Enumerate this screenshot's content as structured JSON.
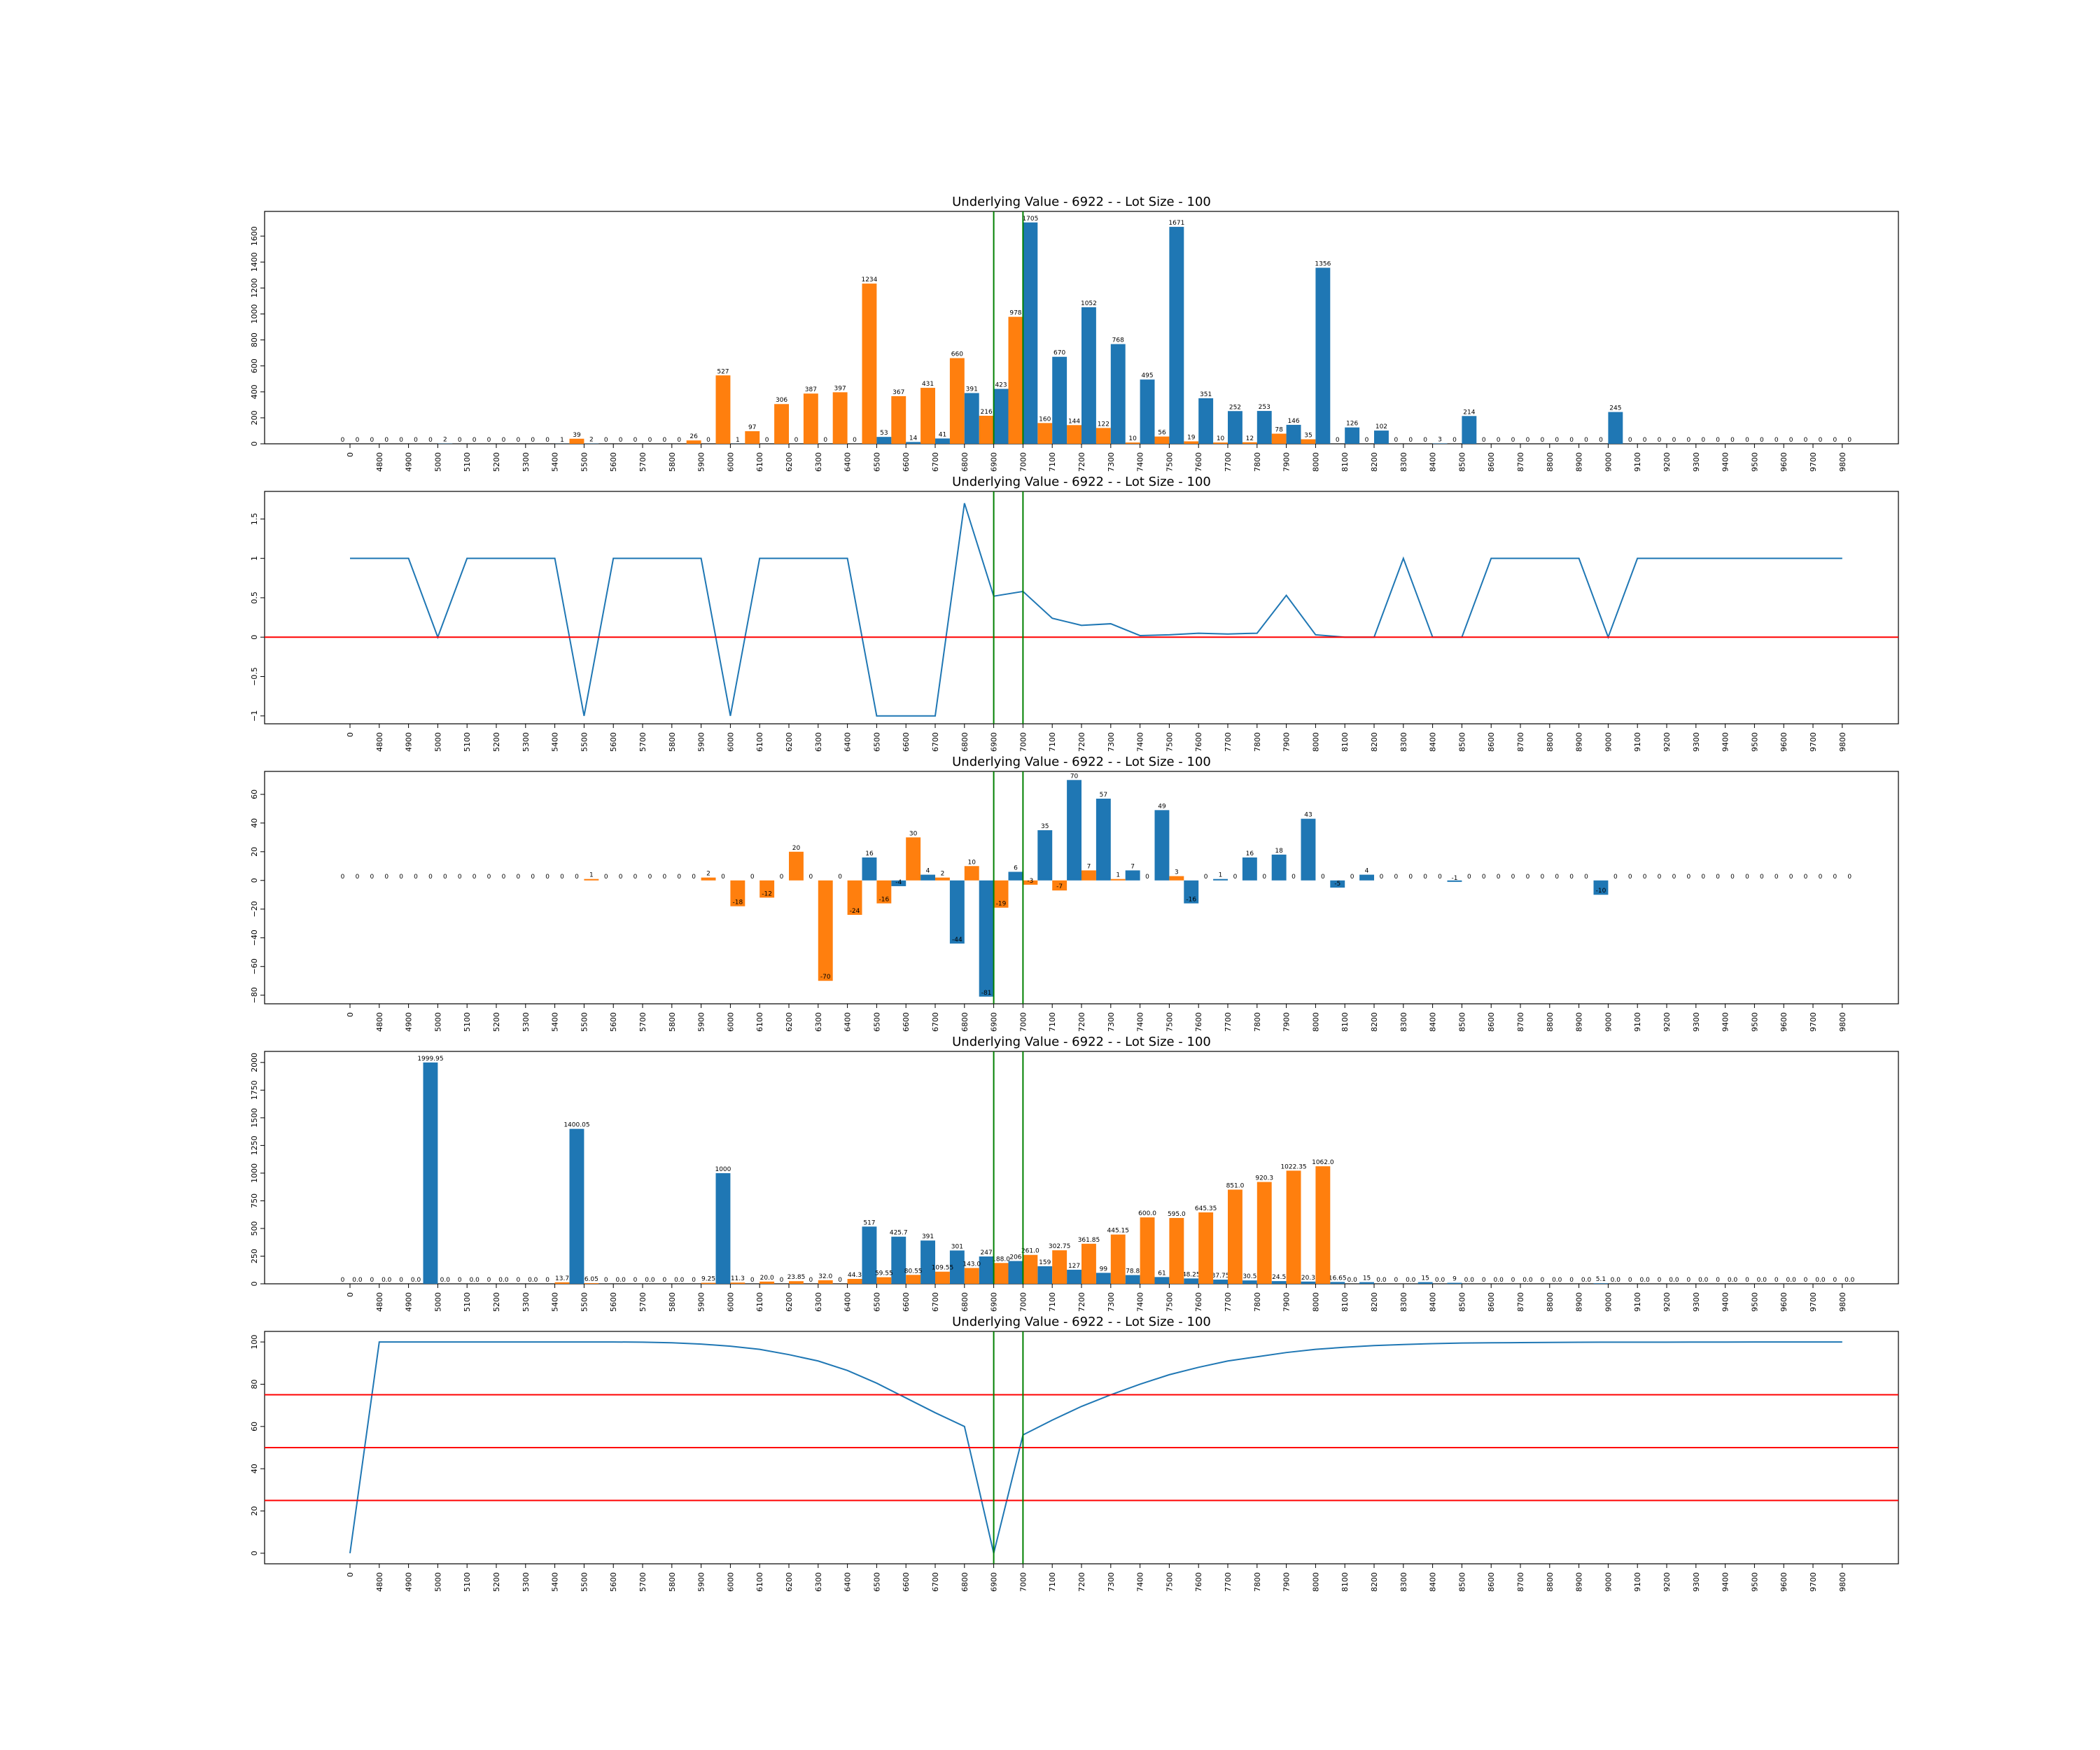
{
  "colors": {
    "blue": "#1f77b4",
    "orange": "#ff7f0e",
    "green": "#008000",
    "red": "#ff0000"
  },
  "x_tick_labels": [
    "0",
    "4800",
    "4900",
    "5000",
    "5100",
    "5200",
    "5300",
    "5400",
    "5500",
    "5600",
    "5700",
    "5800",
    "5900",
    "6000",
    "6100",
    "6200",
    "6300",
    "6400",
    "6500",
    "6600",
    "6700",
    "6800",
    "6900",
    "7000",
    "7100",
    "7200",
    "7300",
    "7400",
    "7500",
    "7600",
    "7700",
    "7800",
    "7900",
    "8000",
    "8100",
    "8200",
    "8300",
    "8400",
    "8500",
    "8600",
    "8700",
    "8800",
    "8900",
    "9000",
    "9100",
    "9200",
    "9300",
    "9400",
    "9500",
    "9600",
    "9700",
    "9800"
  ],
  "chart_data": [
    {
      "type": "bar",
      "title": "Underlying Value - 6922 - - Lot Size - 100",
      "xlabel": "",
      "ylabel": "",
      "ylim": [
        0,
        1790
      ],
      "yticks": [
        0,
        200,
        400,
        600,
        800,
        1000,
        1200,
        1400,
        1600
      ],
      "vlines": [
        "6900",
        "7000"
      ],
      "hlines": [],
      "series": [
        {
          "color": "orange",
          "values": [
            0,
            0,
            0,
            0,
            0,
            0,
            0,
            0,
            39,
            0,
            0,
            0,
            26,
            527,
            97,
            306,
            387,
            397,
            1234,
            367,
            431,
            660,
            216,
            978,
            160,
            144,
            122,
            10,
            56,
            19,
            10,
            12,
            78,
            35,
            0,
            0,
            0,
            0,
            0,
            0,
            0,
            0,
            0,
            0,
            0,
            0,
            0,
            0,
            0,
            0,
            0,
            0
          ]
        },
        {
          "color": "blue",
          "values": [
            0,
            0,
            0,
            2,
            0,
            0,
            0,
            1,
            2,
            0,
            0,
            0,
            0,
            1,
            0,
            0,
            0,
            0,
            53,
            14,
            41,
            391,
            423,
            1705,
            670,
            1052,
            768,
            495,
            1671,
            351,
            252,
            253,
            146,
            1356,
            126,
            102,
            0,
            3,
            214,
            0,
            0,
            0,
            0,
            245,
            0,
            0,
            0,
            0,
            0,
            0,
            0,
            0
          ]
        }
      ]
    },
    {
      "type": "line",
      "title": "Underlying Value - 6922 - - Lot Size - 100",
      "xlabel": "",
      "ylabel": "",
      "ylim": [
        -1.1,
        1.85
      ],
      "yticks": [
        -1.0,
        -0.5,
        0.0,
        0.5,
        1.0,
        1.5
      ],
      "vlines": [
        "6900",
        "7000"
      ],
      "hlines": [
        0
      ],
      "series": [
        {
          "color": "blue",
          "values": [
            1,
            1,
            1,
            0,
            1,
            1,
            1,
            1,
            -1,
            1,
            1,
            1,
            1,
            -1,
            1,
            1,
            1,
            1,
            -1,
            -1,
            -1,
            1.7,
            0.52,
            0.58,
            0.24,
            0.15,
            0.17,
            0.02,
            0.03,
            0.05,
            0.04,
            0.05,
            0.53,
            0.03,
            0,
            0,
            1,
            0,
            0,
            1,
            1,
            1,
            1,
            0,
            1,
            1,
            1,
            1,
            1,
            1,
            1,
            1
          ]
        }
      ]
    },
    {
      "type": "bar",
      "title": "Underlying Value - 6922 - - Lot Size - 100",
      "xlabel": "",
      "ylabel": "",
      "ylim": [
        -86,
        76
      ],
      "yticks": [
        -80,
        -60,
        -40,
        -20,
        0,
        20,
        40,
        60
      ],
      "vlines": [
        "6900",
        "7000"
      ],
      "hlines": [],
      "series": [
        {
          "color": "blue",
          "values": [
            0,
            0,
            0,
            0,
            0,
            0,
            0,
            0,
            0,
            0,
            0,
            0,
            0,
            0,
            0,
            0,
            0,
            0,
            16,
            -4,
            4,
            -44,
            -81,
            6,
            35,
            70,
            57,
            7,
            49,
            -16,
            1,
            16,
            18,
            43,
            -5,
            4,
            0,
            0,
            -1,
            0,
            0,
            0,
            0,
            -10,
            0,
            0,
            0,
            0,
            0,
            0,
            0,
            0
          ]
        },
        {
          "color": "orange",
          "values": [
            0,
            0,
            0,
            0,
            0,
            0,
            0,
            0,
            1,
            0,
            0,
            0,
            2,
            -18,
            -12,
            20,
            -70,
            -24,
            -16,
            30,
            2,
            10,
            -19,
            -3,
            -7,
            7,
            1,
            0,
            3,
            0,
            0,
            0,
            0,
            0,
            0,
            0,
            0,
            0,
            0,
            0,
            0,
            0,
            0,
            0,
            0,
            0,
            0,
            0,
            0,
            0,
            0,
            0
          ]
        }
      ]
    },
    {
      "type": "bar",
      "title": "Underlying Value - 6922 - - Lot Size - 100",
      "xlabel": "",
      "ylabel": "",
      "ylim": [
        0,
        2100
      ],
      "yticks": [
        0,
        250,
        500,
        750,
        1000,
        1250,
        1500,
        1750,
        2000
      ],
      "vlines": [
        "6900",
        "7000"
      ],
      "hlines": [],
      "series": [
        {
          "color": "blue",
          "values": [
            0.0,
            0.0,
            0.0,
            1999.95,
            0.0,
            0.0,
            0.0,
            0.0,
            1400.05,
            0.0,
            0.0,
            0.0,
            0.0,
            1000.0,
            0.0,
            0.0,
            0.0,
            0.0,
            517.0,
            425.7,
            391.0,
            301.0,
            247.0,
            206.0,
            159.0,
            127.0,
            99.0,
            78.8,
            61.0,
            48.25,
            37.75,
            30.5,
            24.5,
            20.3,
            16.65,
            15.0,
            0.0,
            15.0,
            9.0,
            0.0,
            0.0,
            0.0,
            0.0,
            5.1,
            0.0,
            0.0,
            0.0,
            0.0,
            0.0,
            0.0,
            0.0,
            0.0
          ]
        },
        {
          "color": "orange",
          "labels": [
            "0.0",
            "0.0",
            "0.0",
            "0.0",
            "0.0",
            "0.0",
            "0.0",
            "13.7",
            "6.05",
            "0.0",
            "0.0",
            "0.0",
            "9.25",
            "11.3",
            "20.0",
            "23.85",
            "32.0",
            "44.3",
            "59.55",
            "80.55",
            "109.55",
            "143.0",
            "188.0",
            "261.0",
            "302.75",
            "361.85",
            "445.15",
            "600.0",
            "595.0",
            "645.35",
            "851.0",
            "920.3",
            "1022.35",
            "1062.0",
            "0.0",
            "0.0",
            "0.0",
            "0.0",
            "0.0",
            "0.0",
            "0.0",
            "0.0",
            "0.0",
            "0.0",
            "0.0",
            "0.0",
            "0.0",
            "0.0",
            "0.0",
            "0.0",
            "0.0",
            "0.0"
          ],
          "values": [
            0.0,
            0.0,
            0.0,
            0.0,
            0.0,
            0.0,
            0.0,
            13.7,
            6.05,
            0.0,
            0.0,
            0.0,
            9.25,
            11.3,
            20.0,
            23.85,
            32.0,
            44.3,
            59.55,
            80.55,
            109.55,
            143.0,
            188.0,
            261.0,
            302.75,
            361.85,
            445.15,
            600.0,
            595.0,
            645.35,
            851.0,
            920.3,
            1022.35,
            1062.0,
            0.0,
            0.0,
            0.0,
            0.0,
            0.0,
            0.0,
            0.0,
            0.0,
            0.0,
            0.0,
            0.0,
            0.0,
            0.0,
            0.0,
            0.0,
            0.0,
            0.0,
            0.0
          ]
        }
      ]
    },
    {
      "type": "line",
      "title": "Underlying Value - 6922 - - Lot Size - 100",
      "xlabel": "",
      "ylabel": "",
      "ylim": [
        -5,
        105
      ],
      "yticks": [
        0,
        20,
        40,
        60,
        80,
        100
      ],
      "vlines": [
        "6900",
        "7000"
      ],
      "hlines": [
        75,
        50,
        25
      ],
      "series": [
        {
          "color": "blue",
          "values": [
            0,
            100,
            100,
            100,
            100,
            100,
            100,
            100,
            100,
            100,
            99.9,
            99.6,
            99.0,
            98.0,
            96.5,
            94,
            91,
            86.5,
            80.5,
            73.5,
            66.5,
            60,
            0,
            56,
            63,
            69.5,
            75,
            80,
            84.5,
            88,
            91,
            93,
            95,
            96.5,
            97.5,
            98.3,
            98.8,
            99.2,
            99.5,
            99.6,
            99.7,
            99.8,
            99.85,
            99.9,
            99.9,
            99.9,
            99.95,
            99.95,
            100,
            100,
            100,
            100
          ]
        }
      ]
    }
  ]
}
